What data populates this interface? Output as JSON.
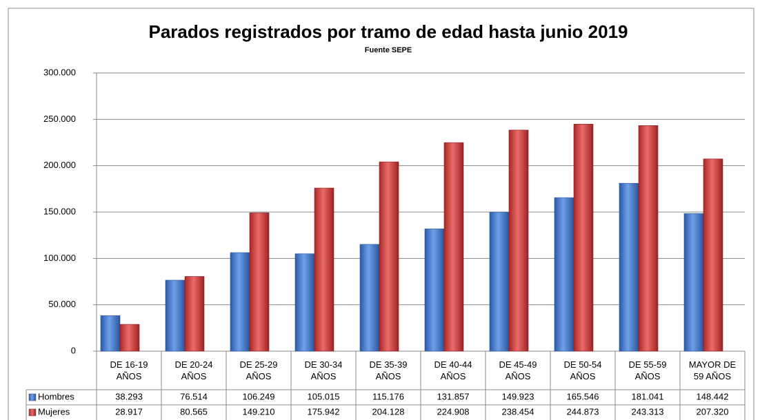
{
  "chart_data": {
    "type": "bar",
    "title": "Parados registrados por tramo de edad hasta junio 2019",
    "subtitle": "Fuente SEPE",
    "categories": [
      "DE 16-19 AÑOS",
      "DE 20-24 AÑOS",
      "DE 25-29 AÑOS",
      "DE 30-34 AÑOS",
      "DE 35-39 AÑOS",
      "DE 40-44 AÑOS",
      "DE 45-49 AÑOS",
      "DE 50-54 AÑOS",
      "DE 55-59 AÑOS",
      "MAYOR DE 59 AÑOS"
    ],
    "series": [
      {
        "name": "Hombres",
        "color": "#4a7fd0",
        "values": [
          38293,
          76514,
          106249,
          105015,
          115176,
          131857,
          149923,
          165546,
          181041,
          148442
        ],
        "value_labels": [
          "38.293",
          "76.514",
          "106.249",
          "105.015",
          "115.176",
          "131.857",
          "149.923",
          "165.546",
          "181.041",
          "148.442"
        ]
      },
      {
        "name": "Mujeres",
        "color": "#d03c3c",
        "values": [
          28917,
          80565,
          149210,
          175942,
          204128,
          224908,
          238454,
          244873,
          243313,
          207320
        ],
        "value_labels": [
          "28.917",
          "80.565",
          "149.210",
          "175.942",
          "204.128",
          "224.908",
          "238.454",
          "244.873",
          "243.313",
          "207.320"
        ]
      }
    ],
    "ylim": [
      0,
      300000
    ],
    "yticks": [
      0,
      {
        "value": 50000,
        "label": "50.000"
      },
      {
        "value": 100000,
        "label": "100.000"
      },
      {
        "value": 150000,
        "label": "150.000"
      },
      {
        "value": 200000,
        "label": "200.000"
      },
      {
        "value": 250000,
        "label": "250.000"
      },
      {
        "value": 300000,
        "label": "300.000"
      }
    ],
    "grid": true
  }
}
